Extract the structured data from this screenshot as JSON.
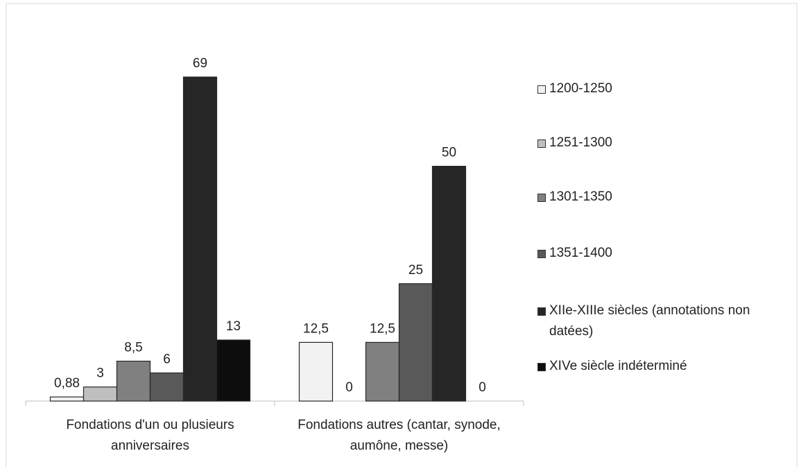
{
  "chart_data": {
    "type": "bar",
    "categories": [
      "Fondations d'un ou plusieurs anniversaires",
      "Fondations autres (cantar, synode, aumône, messe)"
    ],
    "series": [
      {
        "name": "1200-1250",
        "color": "#f2f2f2",
        "values": [
          0.88,
          12.5
        ],
        "value_labels": [
          "0,88",
          "12,5"
        ]
      },
      {
        "name": "1251-1300",
        "color": "#bfbfbf",
        "values": [
          3,
          0
        ]
      },
      {
        "name": "1301-1350",
        "color": "#808080",
        "values": [
          8.5,
          12.5
        ],
        "value_labels": [
          "8,5",
          "12,5"
        ]
      },
      {
        "name": "1351-1400",
        "color": "#595959",
        "values": [
          6,
          25
        ]
      },
      {
        "name": "XIIe-XIIIe siècles (annotations non datées)",
        "color": "#262626",
        "values": [
          69,
          50
        ]
      },
      {
        "name": "XIVe siècle indéterminé",
        "color": "#0d0d0d",
        "values": [
          13,
          0
        ]
      }
    ],
    "legend": "right"
  }
}
